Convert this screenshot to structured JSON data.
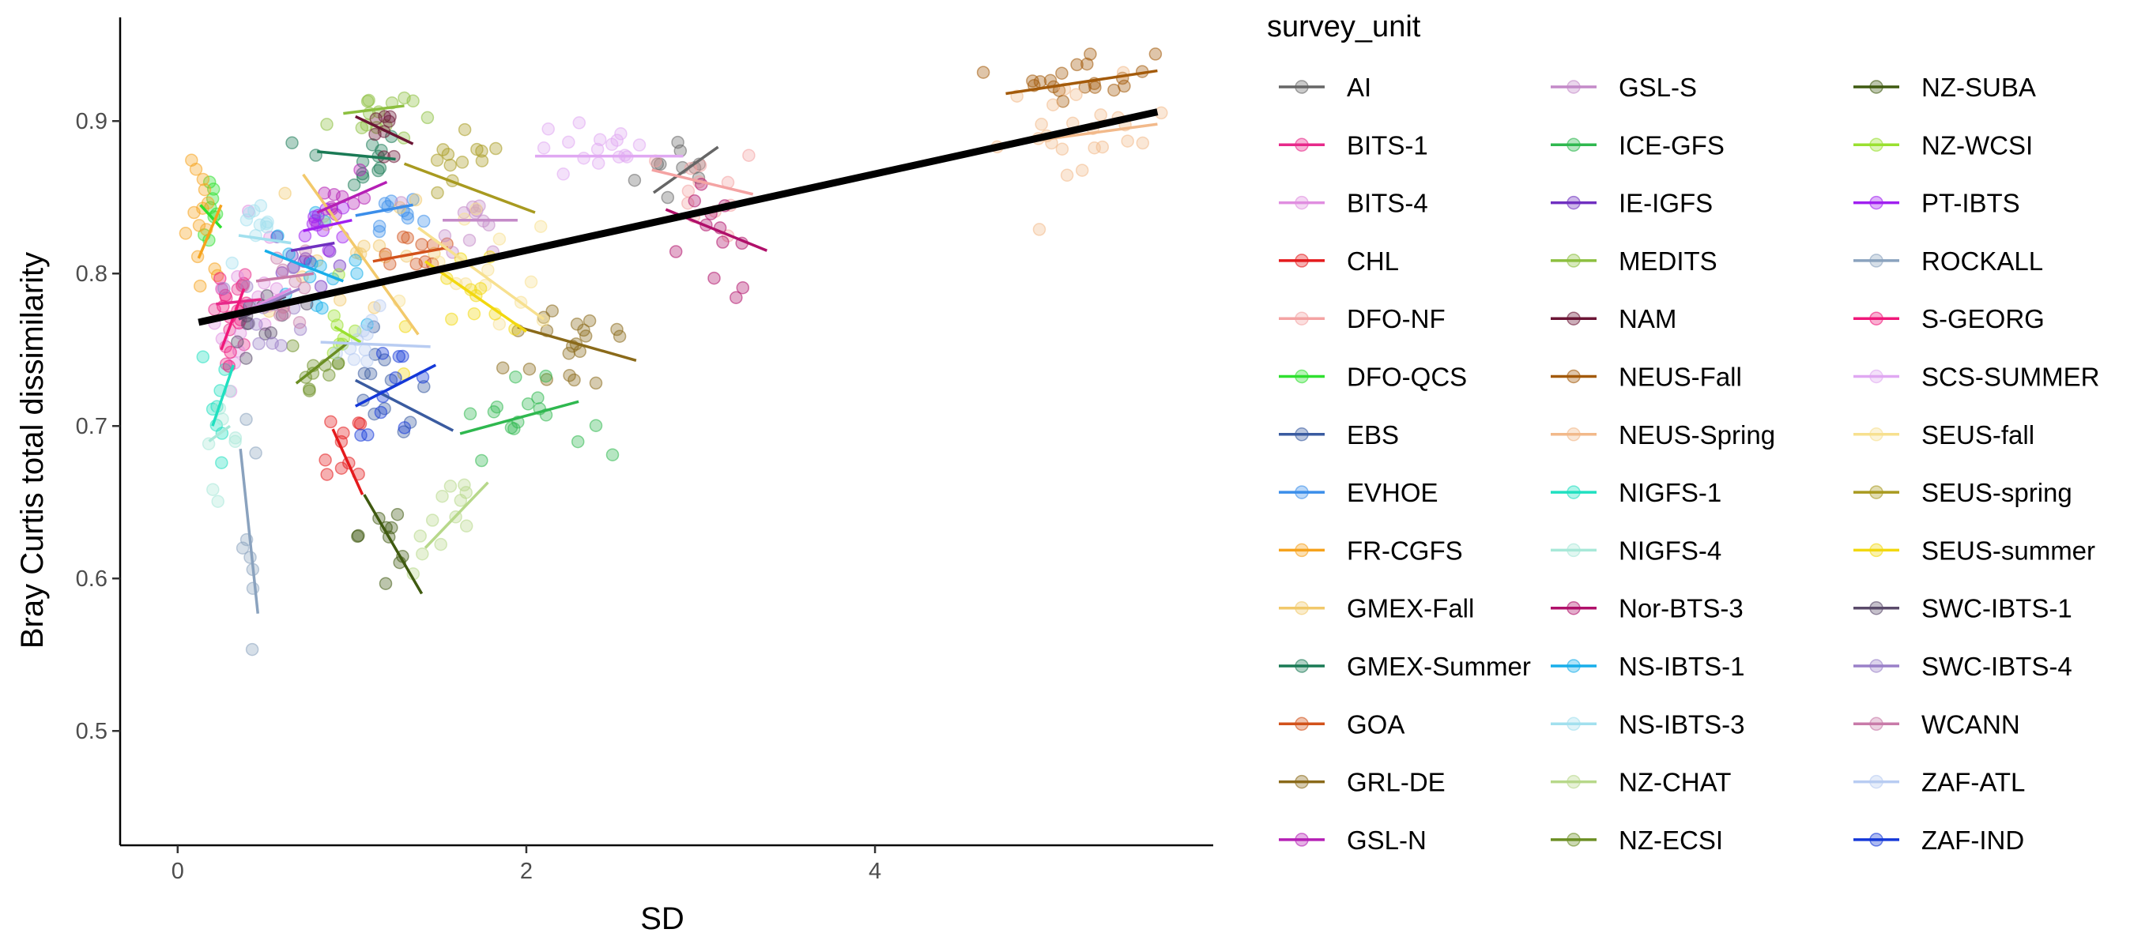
{
  "chart_data": {
    "type": "scatter",
    "title": "",
    "xlabel": "SD",
    "ylabel": "Bray Curtis total dissimilarity",
    "xlim": [
      -0.33,
      5.94
    ],
    "ylim": [
      0.425,
      0.968
    ],
    "x_ticks": [
      0,
      2,
      4
    ],
    "y_ticks": [
      0.5,
      0.6,
      0.7,
      0.8,
      0.9
    ],
    "x_tick_labels": [
      "0",
      "2",
      "4"
    ],
    "y_tick_labels": [
      "0.5",
      "0.6",
      "0.7",
      "0.8",
      "0.9"
    ],
    "grid": false,
    "legend_title": "survey_unit",
    "legend_position": "right",
    "overall_trend": {
      "x1": 0.12,
      "y1": 0.768,
      "x2": 5.62,
      "y2": 0.906,
      "color": "#000000"
    },
    "series": [
      {
        "name": "AI",
        "color": "#666666",
        "cx": 2.93,
        "cy": 0.868,
        "sx": 0.15,
        "sy": 0.013,
        "n": 10,
        "line": [
          2.73,
          0.853,
          3.1,
          0.883
        ]
      },
      {
        "name": "BITS-1",
        "color": "#E7298A",
        "cx": 0.3,
        "cy": 0.78,
        "sx": 0.07,
        "sy": 0.015,
        "n": 12,
        "line": [
          0.22,
          0.78,
          0.48,
          0.783
        ]
      },
      {
        "name": "BITS-4",
        "color": "#E08EE0",
        "cx": 0.45,
        "cy": 0.77,
        "sx": 0.12,
        "sy": 0.035,
        "n": 15,
        "line": [
          0.3,
          0.77,
          0.65,
          0.79
        ]
      },
      {
        "name": "CHL",
        "color": "#E41A1C",
        "cx": 0.95,
        "cy": 0.68,
        "sx": 0.06,
        "sy": 0.015,
        "n": 10,
        "line": [
          0.89,
          0.698,
          1.06,
          0.655
        ]
      },
      {
        "name": "DFO-NF",
        "color": "#F4A3A3",
        "cx": 3.05,
        "cy": 0.855,
        "sx": 0.15,
        "sy": 0.015,
        "n": 12,
        "line": [
          2.72,
          0.868,
          3.3,
          0.852
        ]
      },
      {
        "name": "DFO-QCS",
        "color": "#2FE02F",
        "cx": 0.18,
        "cy": 0.84,
        "sx": 0.03,
        "sy": 0.012,
        "n": 8,
        "line": [
          0.13,
          0.845,
          0.25,
          0.83
        ]
      },
      {
        "name": "EBS",
        "color": "#3A5BA0",
        "cx": 1.2,
        "cy": 0.72,
        "sx": 0.12,
        "sy": 0.018,
        "n": 12,
        "line": [
          1.02,
          0.73,
          1.58,
          0.697
        ]
      },
      {
        "name": "EVHOE",
        "color": "#3B8EEA",
        "cx": 1.2,
        "cy": 0.84,
        "sx": 0.1,
        "sy": 0.01,
        "n": 10,
        "line": [
          1.02,
          0.838,
          1.35,
          0.845
        ]
      },
      {
        "name": "FR-CGFS",
        "color": "#F6A21C",
        "cx": 0.15,
        "cy": 0.82,
        "sx": 0.06,
        "sy": 0.025,
        "n": 14,
        "line": [
          0.12,
          0.81,
          0.25,
          0.845
        ]
      },
      {
        "name": "GMEX-Fall",
        "color": "#F2C96B",
        "cx": 1.0,
        "cy": 0.82,
        "sx": 0.25,
        "sy": 0.03,
        "n": 18,
        "line": [
          0.72,
          0.865,
          1.38,
          0.76
        ]
      },
      {
        "name": "GMEX-Summer",
        "color": "#1A7A55",
        "cx": 1.0,
        "cy": 0.875,
        "sx": 0.15,
        "sy": 0.01,
        "n": 12,
        "line": [
          0.8,
          0.88,
          1.25,
          0.875
        ]
      },
      {
        "name": "GOA",
        "color": "#D2521B",
        "cx": 1.35,
        "cy": 0.815,
        "sx": 0.15,
        "sy": 0.008,
        "n": 10,
        "line": [
          1.12,
          0.808,
          1.55,
          0.817
        ]
      },
      {
        "name": "GRL-DE",
        "color": "#8A6A1A",
        "cx": 2.3,
        "cy": 0.755,
        "sx": 0.2,
        "sy": 0.02,
        "n": 20,
        "line": [
          1.95,
          0.765,
          2.63,
          0.743
        ]
      },
      {
        "name": "GSL-N",
        "color": "#B51FB5",
        "cx": 0.9,
        "cy": 0.85,
        "sx": 0.1,
        "sy": 0.012,
        "n": 10,
        "line": [
          0.8,
          0.84,
          1.2,
          0.86
        ]
      },
      {
        "name": "GSL-S",
        "color": "#C48AC8",
        "cx": 1.7,
        "cy": 0.835,
        "sx": 0.12,
        "sy": 0.01,
        "n": 12,
        "line": [
          1.52,
          0.835,
          1.95,
          0.835
        ]
      },
      {
        "name": "ICE-GFS",
        "color": "#2FB84F",
        "cx": 1.95,
        "cy": 0.705,
        "sx": 0.2,
        "sy": 0.012,
        "n": 16,
        "line": [
          1.62,
          0.695,
          2.3,
          0.716
        ]
      },
      {
        "name": "IE-IGFS",
        "color": "#7030C0",
        "cx": 0.75,
        "cy": 0.81,
        "sx": 0.1,
        "sy": 0.012,
        "n": 10,
        "line": [
          0.65,
          0.815,
          0.9,
          0.82
        ]
      },
      {
        "name": "MEDITS",
        "color": "#8CBF3F",
        "cx": 1.1,
        "cy": 0.905,
        "sx": 0.12,
        "sy": 0.01,
        "n": 14,
        "line": [
          0.95,
          0.905,
          1.3,
          0.91
        ]
      },
      {
        "name": "NAM",
        "color": "#6B1535",
        "cx": 1.2,
        "cy": 0.89,
        "sx": 0.08,
        "sy": 0.015,
        "n": 8,
        "line": [
          1.02,
          0.903,
          1.35,
          0.885
        ]
      },
      {
        "name": "NEUS-Fall",
        "color": "#A35A0A",
        "cx": 5.2,
        "cy": 0.93,
        "sx": 0.2,
        "sy": 0.008,
        "n": 20,
        "line": [
          4.75,
          0.918,
          5.62,
          0.933
        ]
      },
      {
        "name": "NEUS-Spring",
        "color": "#F2B98A",
        "cx": 5.2,
        "cy": 0.89,
        "sx": 0.25,
        "sy": 0.018,
        "n": 24,
        "line": [
          4.65,
          0.883,
          5.62,
          0.898
        ]
      },
      {
        "name": "NIGFS-1",
        "color": "#20E0C0",
        "cx": 0.25,
        "cy": 0.72,
        "sx": 0.06,
        "sy": 0.02,
        "n": 8,
        "line": [
          0.2,
          0.7,
          0.32,
          0.74
        ]
      },
      {
        "name": "NIGFS-4",
        "color": "#A8E8D8",
        "cx": 0.25,
        "cy": 0.69,
        "sx": 0.05,
        "sy": 0.015,
        "n": 8,
        "line": [
          0.18,
          0.69,
          0.3,
          0.7
        ]
      },
      {
        "name": "Nor-BTS-3",
        "color": "#B0106A",
        "cx": 3.1,
        "cy": 0.82,
        "sx": 0.15,
        "sy": 0.02,
        "n": 12,
        "line": [
          2.8,
          0.842,
          3.38,
          0.815
        ]
      },
      {
        "name": "NS-IBTS-1",
        "color": "#18AEEA",
        "cx": 0.75,
        "cy": 0.805,
        "sx": 0.15,
        "sy": 0.015,
        "n": 14,
        "line": [
          0.5,
          0.815,
          0.95,
          0.795
        ]
      },
      {
        "name": "NS-IBTS-3",
        "color": "#A2E0EE",
        "cx": 0.45,
        "cy": 0.825,
        "sx": 0.1,
        "sy": 0.01,
        "n": 10,
        "line": [
          0.35,
          0.825,
          0.65,
          0.82
        ]
      },
      {
        "name": "NZ-CHAT",
        "color": "#B7D88A",
        "cx": 1.55,
        "cy": 0.64,
        "sx": 0.1,
        "sy": 0.02,
        "n": 12,
        "line": [
          1.42,
          0.62,
          1.78,
          0.663
        ]
      },
      {
        "name": "NZ-ECSI",
        "color": "#6B8E23",
        "cx": 0.8,
        "cy": 0.74,
        "sx": 0.1,
        "sy": 0.015,
        "n": 10,
        "line": [
          0.68,
          0.728,
          0.98,
          0.755
        ]
      },
      {
        "name": "NZ-SUBA",
        "color": "#3F5A10",
        "cx": 1.2,
        "cy": 0.63,
        "sx": 0.08,
        "sy": 0.03,
        "n": 10,
        "line": [
          1.07,
          0.655,
          1.4,
          0.59
        ]
      },
      {
        "name": "NZ-WCSI",
        "color": "#9AE030",
        "cx": 0.95,
        "cy": 0.76,
        "sx": 0.06,
        "sy": 0.012,
        "n": 8,
        "line": [
          0.9,
          0.765,
          1.05,
          0.755
        ]
      },
      {
        "name": "PT-IBTS",
        "color": "#A020F0",
        "cx": 0.85,
        "cy": 0.83,
        "sx": 0.1,
        "sy": 0.01,
        "n": 10,
        "line": [
          0.72,
          0.828,
          1.0,
          0.835
        ]
      },
      {
        "name": "ROCKALL",
        "color": "#8AA2BE",
        "cx": 0.4,
        "cy": 0.62,
        "sx": 0.03,
        "sy": 0.04,
        "n": 8,
        "line": [
          0.36,
          0.685,
          0.46,
          0.577
        ]
      },
      {
        "name": "S-GEORG",
        "color": "#F0187A",
        "cx": 0.3,
        "cy": 0.76,
        "sx": 0.06,
        "sy": 0.025,
        "n": 10,
        "line": [
          0.25,
          0.75,
          0.38,
          0.79
        ]
      },
      {
        "name": "SCS-SUMMER",
        "color": "#E0A8F2",
        "cx": 2.4,
        "cy": 0.88,
        "sx": 0.2,
        "sy": 0.01,
        "n": 16,
        "line": [
          2.05,
          0.877,
          2.9,
          0.877
        ]
      },
      {
        "name": "SEUS-fall",
        "color": "#F7E08F",
        "cx": 1.8,
        "cy": 0.8,
        "sx": 0.2,
        "sy": 0.02,
        "n": 14,
        "line": [
          1.38,
          0.83,
          2.1,
          0.77
        ]
      },
      {
        "name": "SEUS-spring",
        "color": "#A89A20",
        "cx": 1.6,
        "cy": 0.865,
        "sx": 0.15,
        "sy": 0.012,
        "n": 12,
        "line": [
          1.3,
          0.872,
          2.05,
          0.84
        ]
      },
      {
        "name": "SEUS-summer",
        "color": "#F2D80F",
        "cx": 1.75,
        "cy": 0.785,
        "sx": 0.2,
        "sy": 0.02,
        "n": 12,
        "line": [
          1.42,
          0.808,
          2.0,
          0.762
        ]
      },
      {
        "name": "SWC-IBTS-1",
        "color": "#5A4A6A",
        "cx": 0.5,
        "cy": 0.77,
        "sx": 0.1,
        "sy": 0.015,
        "n": 12,
        "line": [
          0.35,
          0.77,
          0.62,
          0.785
        ]
      },
      {
        "name": "SWC-IBTS-4",
        "color": "#9A80C8",
        "cx": 0.55,
        "cy": 0.775,
        "sx": 0.1,
        "sy": 0.015,
        "n": 12,
        "line": [
          0.4,
          0.775,
          0.7,
          0.79
        ]
      },
      {
        "name": "WCANN",
        "color": "#C87AA8",
        "cx": 0.6,
        "cy": 0.795,
        "sx": 0.1,
        "sy": 0.015,
        "n": 10,
        "line": [
          0.45,
          0.795,
          0.78,
          0.8
        ]
      },
      {
        "name": "ZAF-ATL",
        "color": "#B8CCF2",
        "cx": 1.1,
        "cy": 0.755,
        "sx": 0.1,
        "sy": 0.01,
        "n": 10,
        "line": [
          0.82,
          0.755,
          1.45,
          0.752
        ]
      },
      {
        "name": "ZAF-IND",
        "color": "#1438D8",
        "cx": 1.25,
        "cy": 0.725,
        "sx": 0.12,
        "sy": 0.015,
        "n": 10,
        "line": [
          1.02,
          0.713,
          1.48,
          0.74
        ]
      }
    ]
  }
}
